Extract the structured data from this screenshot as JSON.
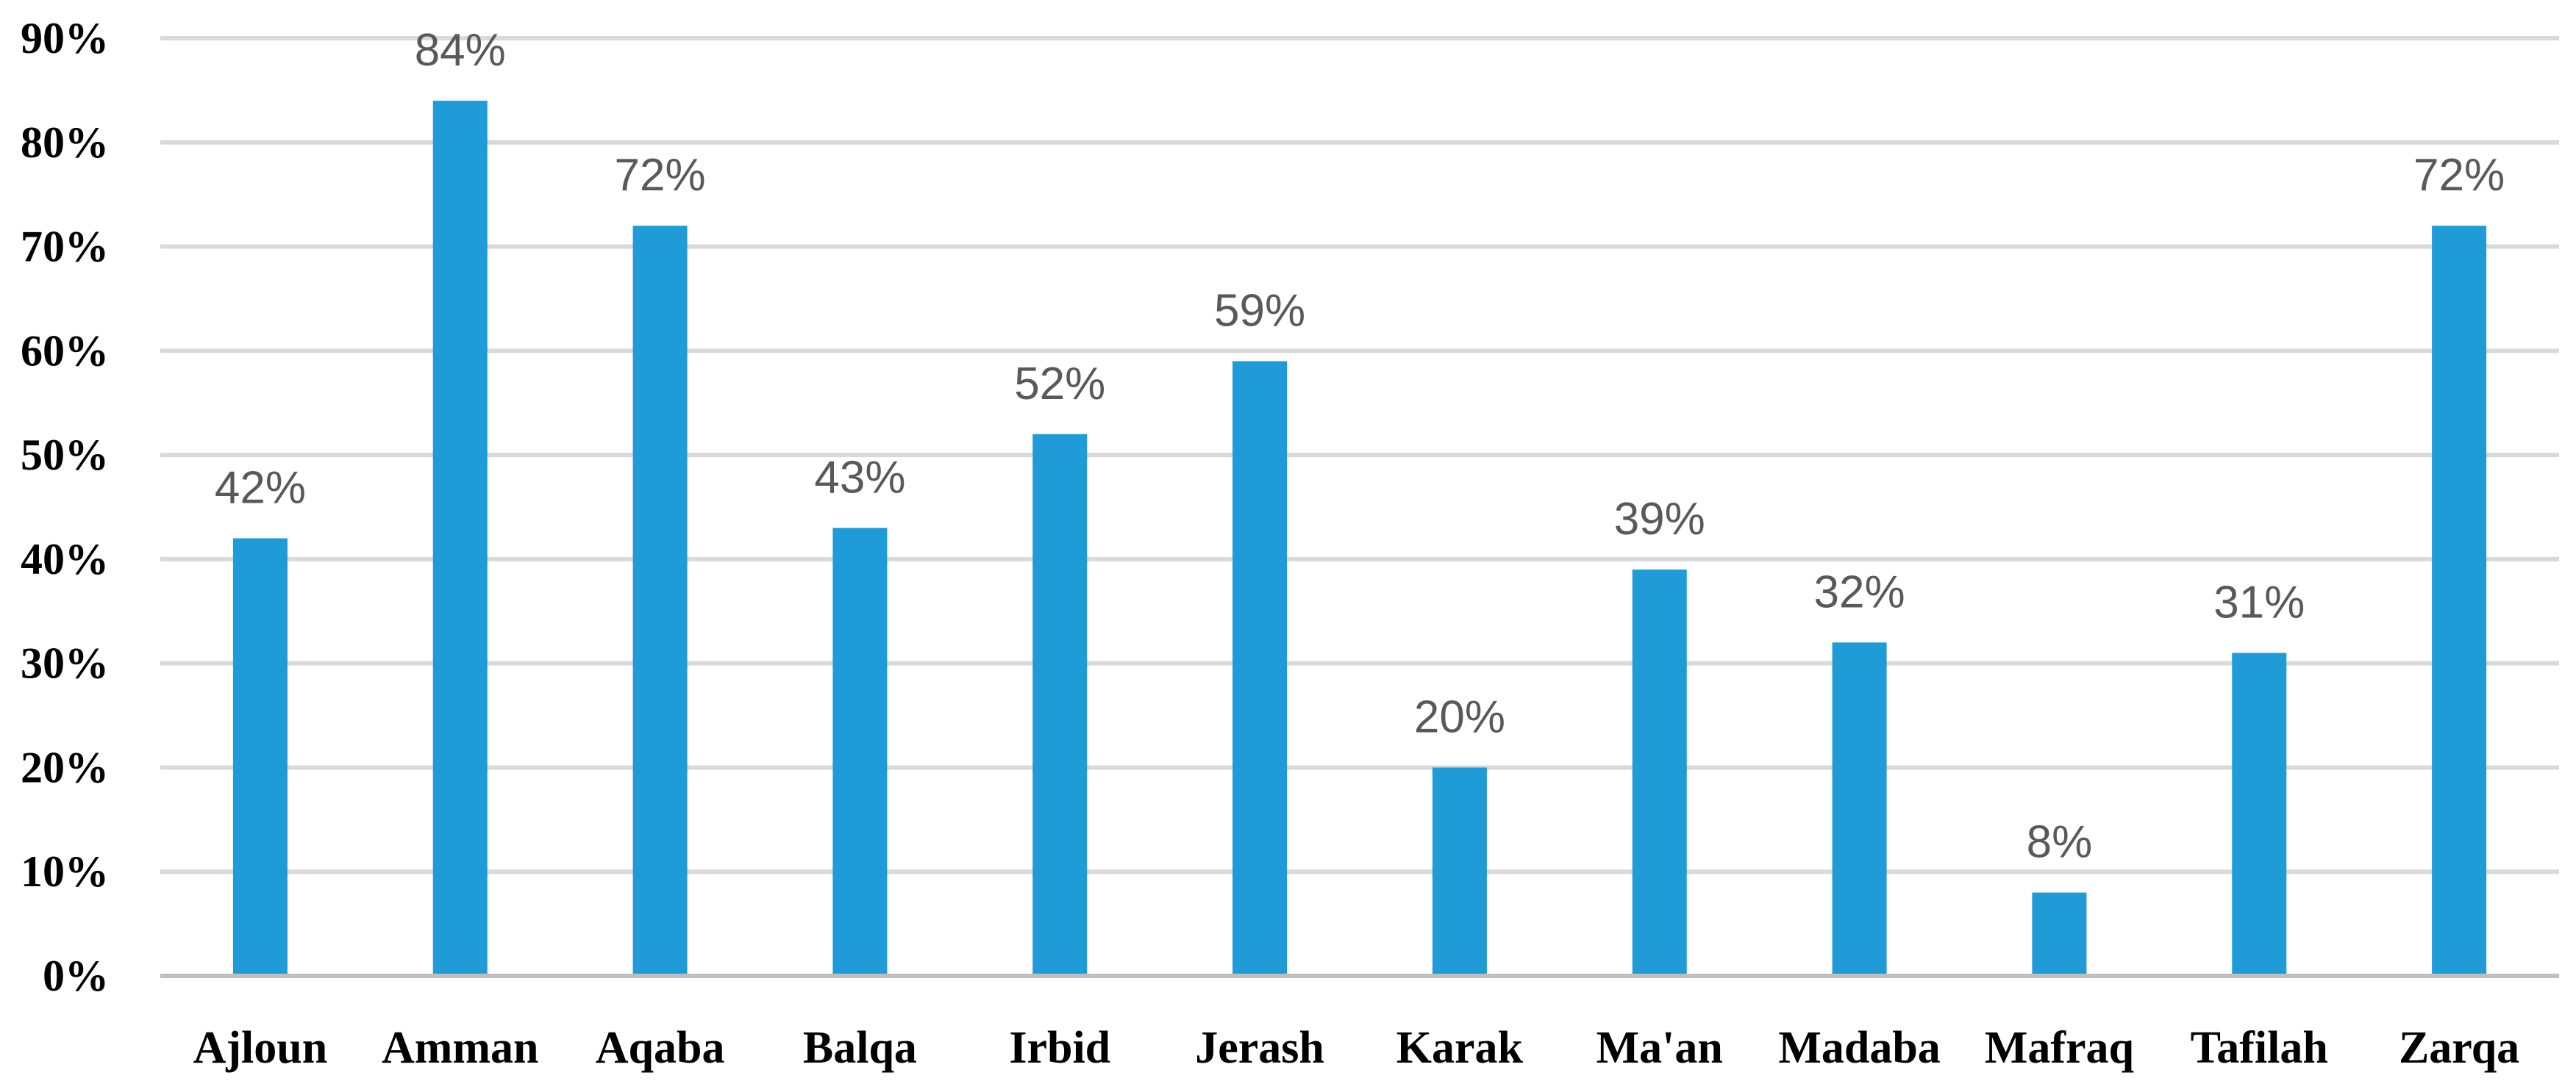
{
  "colors": {
    "bar": "#1f9bd8",
    "grid": "#d9d9d9",
    "axis": "#bfbfbf",
    "data_label": "#595959",
    "tick_label": "#000000"
  },
  "chart_data": {
    "type": "bar",
    "title": "",
    "xlabel": "",
    "ylabel": "",
    "categories": [
      "Ajloun",
      "Amman",
      "Aqaba",
      "Balqa",
      "Irbid",
      "Jerash",
      "Karak",
      "Ma'an",
      "Madaba",
      "Mafraq",
      "Tafilah",
      "Zarqa"
    ],
    "values": [
      42,
      84,
      72,
      43,
      52,
      59,
      20,
      39,
      32,
      8,
      31,
      72
    ],
    "data_labels": [
      "42%",
      "84%",
      "72%",
      "43%",
      "52%",
      "59%",
      "20%",
      "39%",
      "32%",
      "8%",
      "31%",
      "72%"
    ],
    "ylim": [
      0,
      90
    ],
    "yticks": [
      0,
      10,
      20,
      30,
      40,
      50,
      60,
      70,
      80,
      90
    ],
    "ytick_labels": [
      "0%",
      "10%",
      "20%",
      "30%",
      "40%",
      "50%",
      "60%",
      "70%",
      "80%",
      "90%"
    ],
    "grid": true,
    "legend": "none"
  }
}
